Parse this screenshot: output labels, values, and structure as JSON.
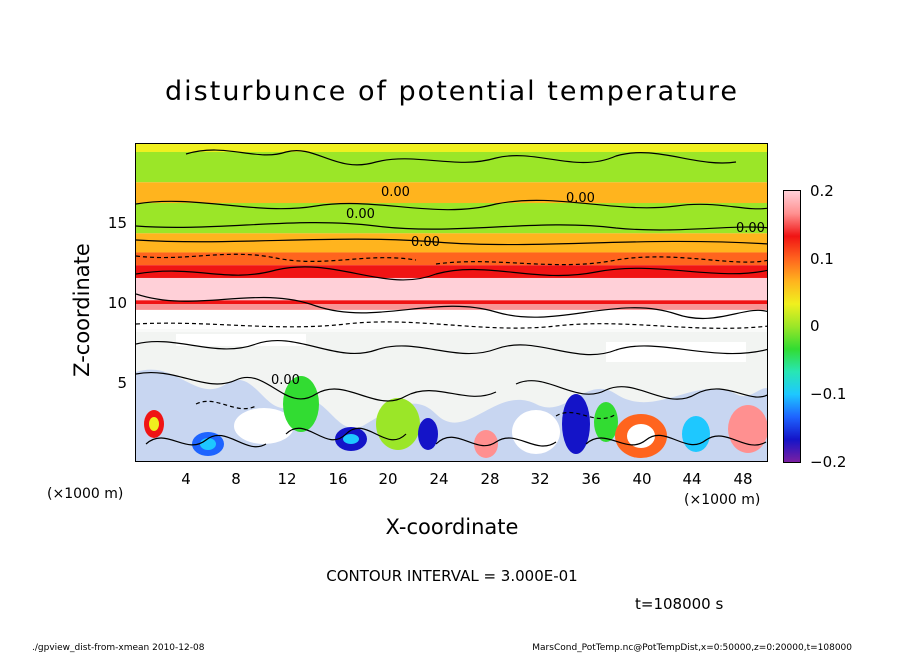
{
  "chart_data": {
    "type": "heatmap",
    "title": "disturbunce of potential temperature",
    "xlabel": "X-coordinate",
    "ylabel": "Z-coordinate",
    "x_unit_label": "(×1000 m)",
    "y_unit_label": "(×1000 m)",
    "xlim": [
      0,
      50
    ],
    "ylim": [
      0,
      20
    ],
    "x_ticks": [
      "4",
      "8",
      "12",
      "16",
      "20",
      "24",
      "28",
      "32",
      "36",
      "40",
      "44",
      "48"
    ],
    "y_ticks": [
      "5",
      "10",
      "15"
    ],
    "x_tick_values": [
      4,
      8,
      12,
      16,
      20,
      24,
      28,
      32,
      36,
      40,
      44,
      48
    ],
    "y_tick_values": [
      5,
      10,
      15
    ],
    "contour_labels": [
      "0.00"
    ],
    "colorbar": {
      "min": -0.2,
      "max": 0.2,
      "ticks": [
        "0.2",
        "0.1",
        "0",
        "−0.1",
        "−0.2"
      ],
      "tick_values": [
        0.2,
        0.1,
        0,
        -0.1,
        -0.2
      ],
      "colors": [
        "#7a1fa2",
        "#1414c8",
        "#1e64ff",
        "#1ec8ff",
        "#28e6b4",
        "#32dc32",
        "#9be628",
        "#f0f01e",
        "#ffb41e",
        "#ff641e",
        "#f01414",
        "#ff9090",
        "#ffd0d8"
      ]
    },
    "bands": [
      {
        "z_from": 19.5,
        "z_to": 20,
        "value": 0.02
      },
      {
        "z_from": 17.6,
        "z_to": 19.5,
        "value": 0.0
      },
      {
        "z_from": 16.3,
        "z_to": 17.6,
        "value": 0.06
      },
      {
        "z_from": 14.4,
        "z_to": 16.3,
        "value": 0.0
      },
      {
        "z_from": 13.2,
        "z_to": 14.4,
        "value": 0.05
      },
      {
        "z_from": 12.4,
        "z_to": 13.2,
        "value": 0.1
      },
      {
        "z_from": 11.6,
        "z_to": 12.4,
        "value": 0.14
      },
      {
        "z_from": 10.2,
        "z_to": 11.6,
        "value": 0.2
      },
      {
        "z_from": 9.6,
        "z_to": 10.2,
        "value": 0.15
      }
    ],
    "contour_interval_text": "CONTOUR INTERVAL = 3.000E-01",
    "time_text": "t=108000 s"
  },
  "footer": {
    "left": "./gpview_dist-from-xmean  2010-12-08",
    "right": "MarsCond_PotTemp.nc@PotTempDist,x=0:50000,z=0:20000,t=108000"
  }
}
